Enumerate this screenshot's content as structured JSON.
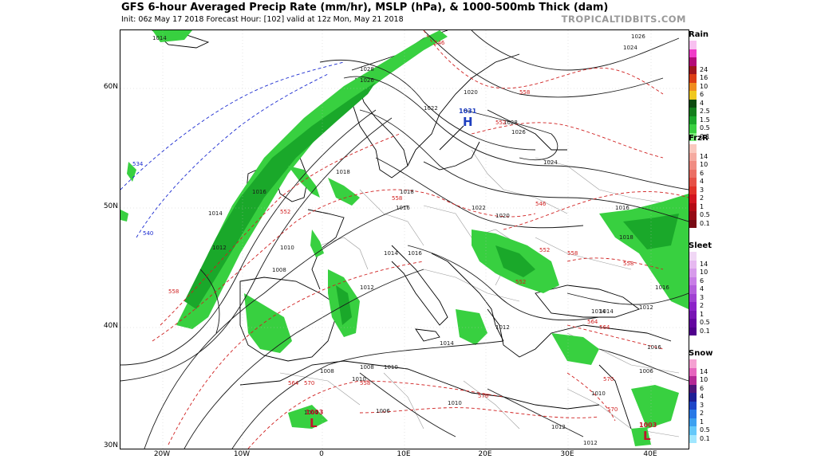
{
  "header": {
    "title": "GFS 6-hour Averaged Precip Rate (mm/hr), MSLP (hPa), & 1000-500mb Thick (dam)",
    "subtitle": "Init: 06z May 17 2018   Forecast Hour: [102]   valid at 12z Mon, May 21 2018",
    "brand": "TROPICALTIDBITS.COM"
  },
  "axes": {
    "lat_labels": [
      "60N",
      "50N",
      "40N",
      "30N"
    ],
    "lon_labels": [
      "20W",
      "10W",
      "0",
      "10E",
      "20E",
      "30E",
      "40E"
    ]
  },
  "pressure_centers": [
    {
      "type": "H",
      "value": "1031",
      "color": "#1f3fbf"
    },
    {
      "type": "L",
      "value": "1003",
      "color": "#c0152a"
    },
    {
      "type": "L",
      "value": "1003",
      "color": "#c0152a"
    }
  ],
  "isobar_labels": [
    "1014",
    "1026",
    "1024",
    "1028",
    "1026",
    "1020",
    "1022",
    "1026",
    "1024",
    "1028",
    "1018",
    "1016",
    "1016",
    "1014",
    "1012",
    "1010",
    "1008",
    "1012",
    "1014",
    "1016",
    "1018",
    "1022",
    "1020",
    "1016",
    "1018",
    "1016",
    "1014",
    "1012",
    "1016",
    "1014",
    "1012",
    "1014",
    "1010",
    "1008",
    "1010",
    "1004",
    "1006",
    "1008",
    "1010",
    "1012",
    "1012",
    "1010",
    "1006"
  ],
  "thickness_labels": [
    "534",
    "540",
    "546",
    "552",
    "558",
    "558",
    "552",
    "558",
    "546",
    "552",
    "558",
    "564",
    "570",
    "576",
    "558",
    "564",
    "570",
    "552",
    "558",
    "564",
    "570"
  ],
  "legend": [
    {
      "name": "Rain",
      "colors": [
        "#f8c0f0",
        "#f03cc8",
        "#b40a78",
        "#a0141e",
        "#dc3c14",
        "#f08c1e",
        "#f0c81e",
        "#0c4a10",
        "#127e1c",
        "#1aa82a",
        "#38d040",
        "#7cf07c"
      ],
      "labels": [
        "24",
        "16",
        "10",
        "6",
        "4",
        "2.5",
        "1.5",
        "0.5",
        "0.1"
      ]
    },
    {
      "name": "FrzR",
      "colors": [
        "#fac8be",
        "#f5aaa0",
        "#f08c82",
        "#eb6e64",
        "#e65046",
        "#e13228",
        "#d2141e",
        "#b40a14",
        "#960a14",
        "#780a14"
      ],
      "labels": [
        "14",
        "10",
        "6",
        "4",
        "3",
        "2",
        "1",
        "0.5",
        "0.1"
      ]
    },
    {
      "name": "Sleet",
      "colors": [
        "#f0d7f5",
        "#e6b9f0",
        "#d79beb",
        "#c87de6",
        "#b45fdc",
        "#a041d2",
        "#8c23c8",
        "#7814b4",
        "#6405a0",
        "#50008c"
      ],
      "labels": [
        "14",
        "10",
        "6",
        "4",
        "3",
        "2",
        "1",
        "0.5",
        "0.1"
      ]
    },
    {
      "name": "Snow",
      "colors": [
        "#f5a0d2",
        "#e664be",
        "#b42896",
        "#50147a",
        "#1e1e96",
        "#1e46c8",
        "#2878e6",
        "#3ca0f0",
        "#64c8fa",
        "#a0e6ff"
      ],
      "labels": [
        "14",
        "10",
        "6",
        "4",
        "3",
        "2",
        "1",
        "0.5",
        "0.1"
      ]
    }
  ],
  "colors": {
    "precip_light": "#38d040",
    "precip_med": "#1aa82a",
    "isobar": "#1a1a1a",
    "thick_red": "#d02020",
    "thick_blue": "#1a2ad0",
    "coast": "#000000",
    "border": "#888888"
  }
}
